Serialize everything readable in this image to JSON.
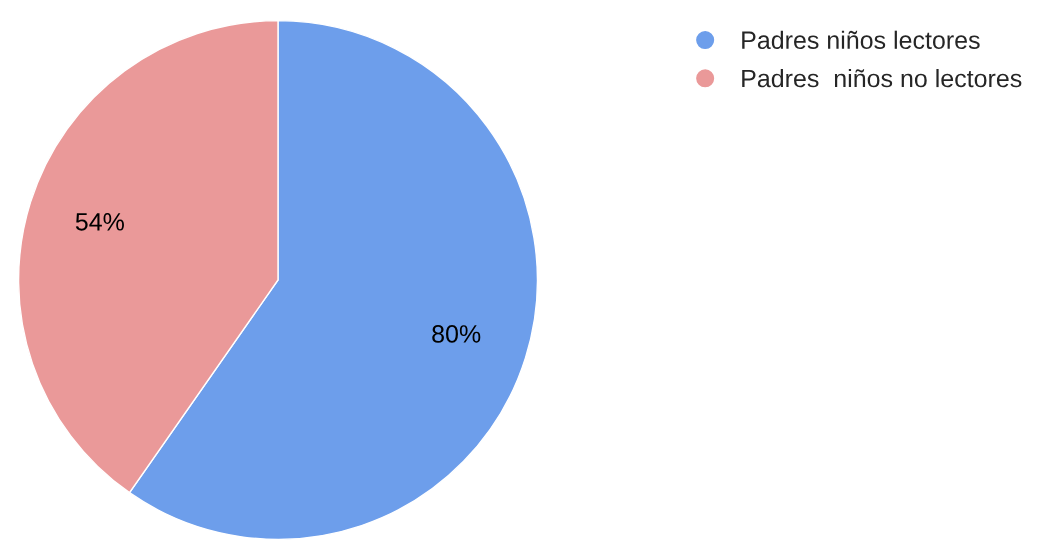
{
  "chart_data": {
    "type": "pie",
    "categories": [
      "Padres niños lectores",
      "Padres  niños no lectores"
    ],
    "values": [
      80,
      54
    ],
    "colors": [
      "#6d9eeb",
      "#ea9999"
    ],
    "value_labels": [
      "80%",
      "54%"
    ],
    "legend": "top right"
  }
}
